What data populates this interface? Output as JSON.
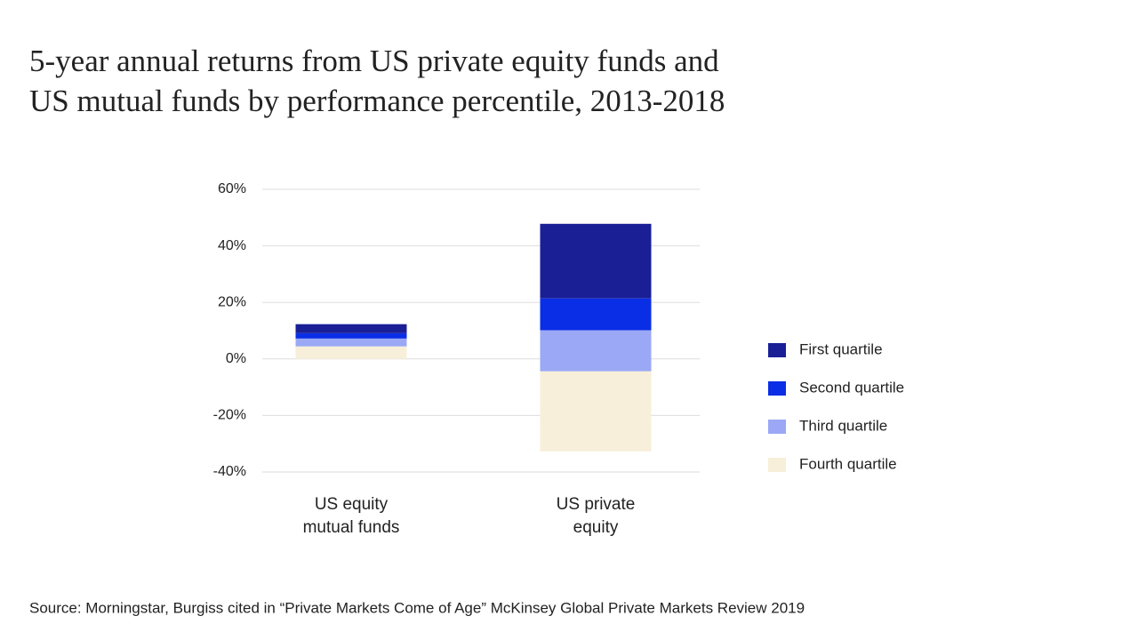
{
  "chart_data": {
    "type": "range-bar",
    "title": [
      "5-year annual returns from US private equity funds and",
      "US mutual funds by performance percentile, 2013-2018"
    ],
    "categories": [
      [
        "US equity",
        "mutual funds"
      ],
      [
        "US private",
        "equity"
      ]
    ],
    "series": [
      {
        "name": "First quartile",
        "color": "#1a1f96",
        "low": [
          9.1,
          21.4
        ],
        "high": [
          12.3,
          47.8
        ]
      },
      {
        "name": "Second quartile",
        "color": "#0a2ee6",
        "low": [
          7.2,
          10.1
        ],
        "high": [
          9.1,
          21.4
        ]
      },
      {
        "name": "Third quartile",
        "color": "#9ba8f5",
        "low": [
          4.4,
          -4.4
        ],
        "high": [
          7.2,
          10.1
        ]
      },
      {
        "name": "Fourth quartile",
        "color": "#f7efd9",
        "low": [
          0,
          -32.7
        ],
        "high": [
          4.4,
          -4.4
        ]
      }
    ],
    "ylim": [
      -40,
      60
    ],
    "yticks": [
      {
        "value": -40,
        "label": "-40%"
      },
      {
        "value": -20,
        "label": "-20%"
      },
      {
        "value": 0,
        "label": "0%"
      },
      {
        "value": 20,
        "label": "20%"
      },
      {
        "value": 40,
        "label": "40%"
      },
      {
        "value": 60,
        "label": "60%"
      }
    ],
    "grid": true,
    "legend": "right",
    "source": "Source: Morningstar, Burgiss cited in “Private Markets Come of Age” McKinsey Global Private Markets Review 2019"
  }
}
